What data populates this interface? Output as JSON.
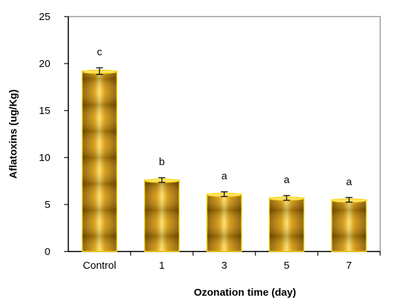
{
  "chart_data": {
    "type": "bar",
    "title": "",
    "xlabel": "Ozonation time (day)",
    "ylabel": "Aflatoxins (ug/Kg)",
    "categories": [
      "Control",
      "1",
      "3",
      "5",
      "7"
    ],
    "values": [
      19.2,
      7.6,
      6.1,
      5.7,
      5.5
    ],
    "errors": [
      0.35,
      0.25,
      0.25,
      0.25,
      0.25
    ],
    "significance_letters": [
      "c",
      "b",
      "a",
      "a",
      "a"
    ],
    "ylim": [
      0,
      25
    ],
    "yticks": [
      "0",
      "5",
      "10",
      "15",
      "20",
      "25"
    ],
    "ytick_values": [
      0,
      5,
      10,
      15,
      20,
      25
    ],
    "grid": false,
    "legend": "none",
    "colors": {
      "bar_dark": "#8a5a00",
      "bar_mid": "#d99a0a",
      "bar_light": "#ffe066",
      "bar_edge": "#f2d500"
    }
  }
}
